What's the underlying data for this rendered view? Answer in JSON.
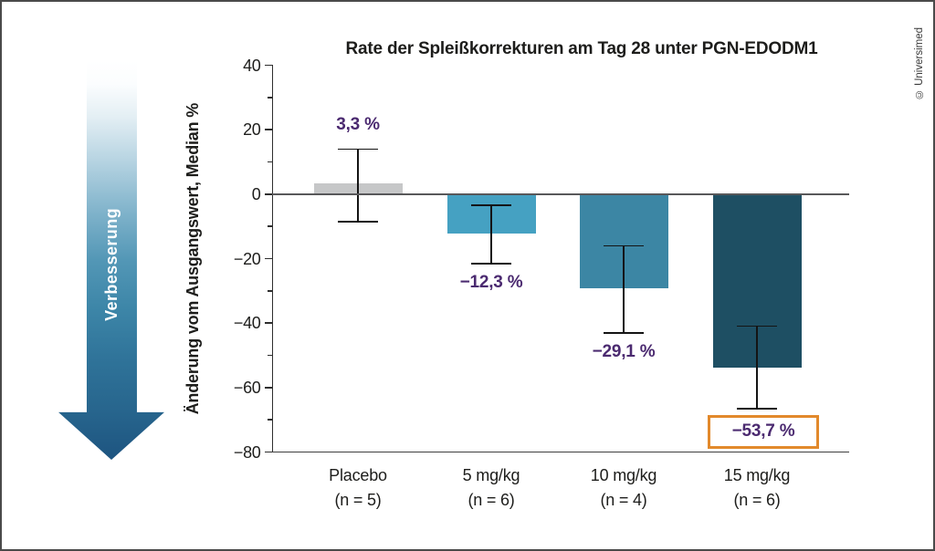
{
  "credit": "© Universimed",
  "improvement_arrow": {
    "label": "Verbesserung"
  },
  "chart_data": {
    "type": "bar",
    "title": "Rate der Spleißkorrekturen am Tag 28 unter PGN-EDODM1",
    "ylabel": "Änderung vom Ausgangswert, Median %",
    "ylim": [
      -80,
      40
    ],
    "yticks": [
      {
        "value": 40,
        "label": "40"
      },
      {
        "value": 20,
        "label": "20"
      },
      {
        "value": 0,
        "label": "0"
      },
      {
        "value": -20,
        "label": "−20"
      },
      {
        "value": -40,
        "label": "−40"
      },
      {
        "value": -60,
        "label": "−60"
      },
      {
        "value": -80,
        "label": "−80"
      }
    ],
    "minor_yticks": [
      30,
      10,
      -10,
      -30,
      -50,
      -70
    ],
    "grid": false,
    "legend": false,
    "zero_line": true,
    "value_label_color": "#4b2a70",
    "highlight_box_color": "#e2892b",
    "bars": [
      {
        "category": "Placebo",
        "n_label": "(n = 5)",
        "value": 3.3,
        "value_label": "3,3 %",
        "error_high": 14,
        "error_low": -8.5,
        "color": "#c6c7c8",
        "label_position": "above",
        "highlighted": false
      },
      {
        "category": "5 mg/kg",
        "n_label": "(n = 6)",
        "value": -12.3,
        "value_label": "−12,3 %",
        "error_high": -3.5,
        "error_low": -21.5,
        "color": "#45a1c2",
        "label_position": "below",
        "highlighted": false
      },
      {
        "category": "10 mg/kg",
        "n_label": "(n = 4)",
        "value": -29.1,
        "value_label": "−29,1 %",
        "error_high": -16,
        "error_low": -43,
        "color": "#3c86a4",
        "label_position": "below",
        "highlighted": false
      },
      {
        "category": "15 mg/kg",
        "n_label": "(n = 6)",
        "value": -53.7,
        "value_label": "−53,7 %",
        "error_high": -41,
        "error_low": -66.5,
        "color": "#1e4f63",
        "label_position": "below",
        "highlighted": true
      }
    ]
  }
}
